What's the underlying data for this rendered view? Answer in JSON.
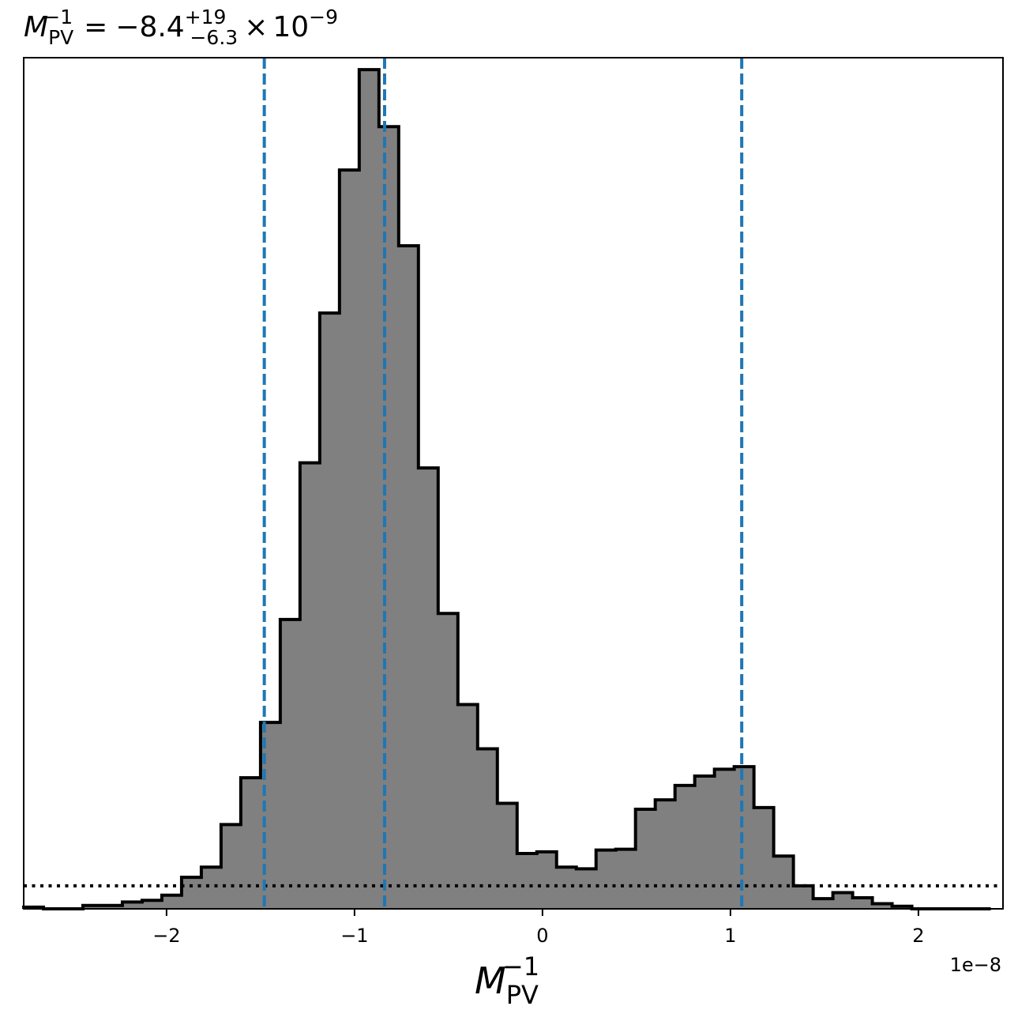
{
  "chart_data": {
    "type": "bar",
    "title": {
      "symbol": "M",
      "sub": "PV",
      "sup": "−1",
      "equals": "=",
      "value": "−8.4",
      "plus_err": "+19",
      "minus_err": "−6.3",
      "times": "×",
      "base": "10",
      "exponent": "−9"
    },
    "xlabel": {
      "symbol": "M",
      "sub": "PV",
      "sup": "−1"
    },
    "ylabel": "",
    "offset_label": "1e−8",
    "x_scale_factor": 1e-08,
    "xlim": [
      -2.76,
      2.45
    ],
    "ylim": [
      0,
      1.0
    ],
    "x_ticks": [
      {
        "value": -2,
        "label": "−2"
      },
      {
        "value": -1,
        "label": "−1"
      },
      {
        "value": 0,
        "label": "0"
      },
      {
        "value": 1,
        "label": "1"
      },
      {
        "value": 2,
        "label": "2"
      }
    ],
    "y_ticks_visible": false,
    "histogram": {
      "style": "stepfilled",
      "fill_color": "#808080",
      "edge_color": "#000000",
      "bin_edges": [
        -2.76,
        -2.655,
        -2.55,
        -2.445,
        -2.34,
        -2.235,
        -2.13,
        -2.025,
        -1.92,
        -1.815,
        -1.71,
        -1.605,
        -1.5,
        -1.395,
        -1.29,
        -1.185,
        -1.08,
        -0.975,
        -0.87,
        -0.765,
        -0.66,
        -0.555,
        -0.45,
        -0.345,
        -0.24,
        -0.135,
        -0.03,
        0.075,
        0.18,
        0.285,
        0.39,
        0.495,
        0.6,
        0.705,
        0.81,
        0.915,
        1.02,
        1.125,
        1.23,
        1.335,
        1.44,
        1.545,
        1.65,
        1.755,
        1.86,
        1.965,
        2.07,
        2.175,
        2.28,
        2.385
      ],
      "counts": [
        0.002,
        0.0,
        0.0,
        0.004,
        0.004,
        0.008,
        0.01,
        0.016,
        0.037,
        0.049,
        0.099,
        0.154,
        0.219,
        0.34,
        0.524,
        0.7,
        0.868,
        0.986,
        0.919,
        0.779,
        0.518,
        0.347,
        0.24,
        0.188,
        0.124,
        0.065,
        0.067,
        0.049,
        0.047,
        0.069,
        0.07,
        0.117,
        0.128,
        0.145,
        0.156,
        0.164,
        0.167,
        0.119,
        0.062,
        0.027,
        0.012,
        0.019,
        0.013,
        0.006,
        0.003,
        0.0,
        0.0,
        0.0,
        0.0
      ]
    },
    "vertical_lines": [
      {
        "x": -1.48,
        "style": "dashed",
        "color": "#1f77b4",
        "role": "lower"
      },
      {
        "x": -0.84,
        "style": "dashed",
        "color": "#1f77b4",
        "role": "median"
      },
      {
        "x": 1.06,
        "style": "dashed",
        "color": "#1f77b4",
        "role": "upper"
      }
    ],
    "horizontal_lines": [
      {
        "y": 0.027,
        "style": "dotted",
        "color": "#000000"
      }
    ],
    "grid": false,
    "legend": "none"
  }
}
